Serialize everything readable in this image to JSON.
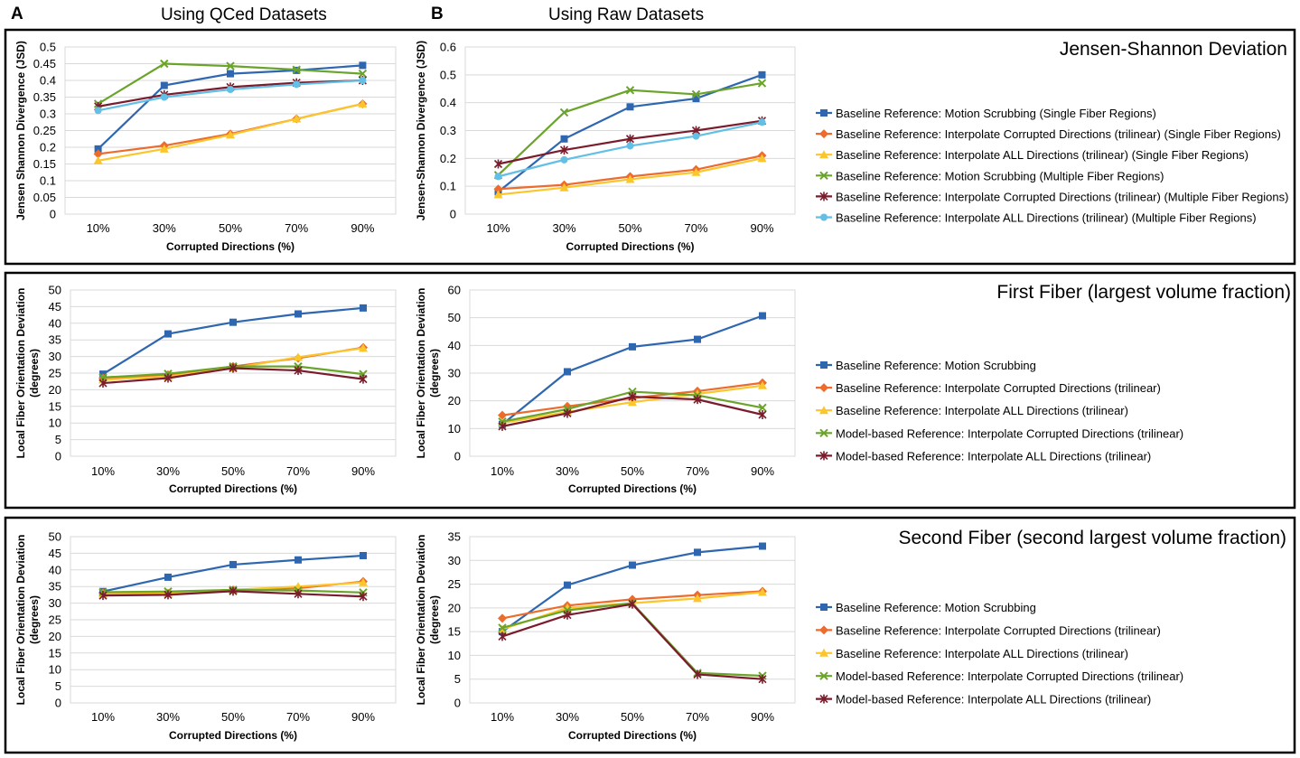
{
  "header": {
    "panel_a_letter": "A",
    "panel_a_title": "Using QCed Datasets",
    "panel_b_letter": "B",
    "panel_b_title": "Using Raw Datasets"
  },
  "colors": {
    "series": [
      "#2e67b0",
      "#ed6b2c",
      "#fbc52c",
      "#6aa42a",
      "#7b1c2c",
      "#62bfe6"
    ],
    "grid": "#d9d9d9",
    "frame": "#000000"
  },
  "chart_data": [
    {
      "type": "line",
      "row": "jsd",
      "panel": "A",
      "title": "Jensen-Shannon Deviation",
      "xlabel": "Corrupted Directions (%)",
      "ylabel": "Jensen Shannon Divergence (JSD)",
      "ylim": [
        0,
        0.5
      ],
      "ytick_step": 0.05,
      "ytick_labels": [
        "0",
        "0.05",
        "0.1",
        "0.15",
        "0.2",
        "0.25",
        "0.3",
        "0.35",
        "0.4",
        "0.45",
        "0.5"
      ],
      "categories": [
        "10%",
        "30%",
        "50%",
        "70%",
        "90%"
      ],
      "series": [
        {
          "name": "Baseline Reference: Motion Scrubbing (Single Fiber Regions)",
          "values": [
            0.195,
            0.385,
            0.42,
            0.43,
            0.445
          ]
        },
        {
          "name": "Baseline Reference: Interpolate Corrupted Directions (trilinear) (Single Fiber Regions)",
          "values": [
            0.18,
            0.205,
            0.24,
            0.285,
            0.33
          ]
        },
        {
          "name": "Baseline Reference: Interpolate ALL Directions (trilinear) (Single Fiber Regions)",
          "values": [
            0.16,
            0.195,
            0.237,
            0.285,
            0.33
          ]
        },
        {
          "name": "Baseline Reference: Motion Scrubbing (Multiple Fiber Regions)",
          "values": [
            0.33,
            0.45,
            0.443,
            0.432,
            0.42
          ]
        },
        {
          "name": "Baseline Reference: Interpolate Corrupted Directions (trilinear) (Multiple Fiber Regions)",
          "values": [
            0.322,
            0.357,
            0.38,
            0.393,
            0.4
          ]
        },
        {
          "name": "Baseline Reference: Interpolate ALL Directions (trilinear) (Multiple Fiber Regions)",
          "values": [
            0.31,
            0.35,
            0.373,
            0.388,
            0.4
          ]
        }
      ]
    },
    {
      "type": "line",
      "row": "jsd",
      "panel": "B",
      "xlabel": "Corrupted Directions (%)",
      "ylabel": "Jensen-Shannon Divergence (JSD)",
      "ylim": [
        0,
        0.6
      ],
      "ytick_step": 0.1,
      "ytick_labels": [
        "0",
        "0.1",
        "0.2",
        "0.3",
        "0.4",
        "0.5",
        "0.6"
      ],
      "categories": [
        "10%",
        "30%",
        "50%",
        "70%",
        "90%"
      ],
      "legend": [
        "Baseline Reference: Motion Scrubbing (Single Fiber Regions)",
        "Baseline Reference: Interpolate Corrupted Directions (trilinear) (Single Fiber Regions)",
        "Baseline Reference: Interpolate ALL Directions (trilinear) (Single Fiber Regions)",
        "Baseline Reference: Motion Scrubbing (Multiple Fiber Regions)",
        "Baseline Reference: Interpolate Corrupted Directions (trilinear) (Multiple Fiber Regions)",
        "Baseline Reference: Interpolate ALL Directions (trilinear) (Multiple Fiber Regions)"
      ],
      "series": [
        {
          "name": "Baseline Reference: Motion Scrubbing (Single Fiber Regions)",
          "values": [
            0.08,
            0.27,
            0.385,
            0.415,
            0.5
          ]
        },
        {
          "name": "Baseline Reference: Interpolate Corrupted Directions (trilinear) (Single Fiber Regions)",
          "values": [
            0.09,
            0.105,
            0.135,
            0.16,
            0.21
          ]
        },
        {
          "name": "Baseline Reference: Interpolate ALL Directions (trilinear) (Single Fiber Regions)",
          "values": [
            0.07,
            0.095,
            0.125,
            0.15,
            0.2
          ]
        },
        {
          "name": "Baseline Reference: Motion Scrubbing (Multiple Fiber Regions)",
          "values": [
            0.14,
            0.365,
            0.445,
            0.43,
            0.47
          ]
        },
        {
          "name": "Baseline Reference: Interpolate Corrupted Directions (trilinear) (Multiple Fiber Regions)",
          "values": [
            0.18,
            0.23,
            0.27,
            0.3,
            0.335
          ]
        },
        {
          "name": "Baseline Reference: Interpolate ALL Directions (trilinear) (Multiple Fiber Regions)",
          "values": [
            0.135,
            0.195,
            0.245,
            0.28,
            0.33
          ]
        }
      ]
    },
    {
      "type": "line",
      "row": "first",
      "panel": "A",
      "title": "First Fiber (largest volume fraction)",
      "xlabel": "Corrupted Directions (%)",
      "ylabel_lines": [
        "Local Fiber Orientation Deviation",
        "(degrees)"
      ],
      "ylim": [
        0,
        50
      ],
      "ytick_step": 5,
      "ytick_labels": [
        "0",
        "5",
        "10",
        "15",
        "20",
        "25",
        "30",
        "35",
        "40",
        "45",
        "50"
      ],
      "categories": [
        "10%",
        "30%",
        "50%",
        "70%",
        "90%"
      ],
      "series": [
        {
          "name": "Baseline Reference: Motion Scrubbing",
          "values": [
            24.7,
            36.8,
            40.3,
            42.8,
            44.6
          ]
        },
        {
          "name": "Baseline Reference: Interpolate Corrupted Directions (trilinear)",
          "values": [
            23.5,
            24.5,
            27.0,
            29.5,
            32.7
          ]
        },
        {
          "name": "Baseline Reference: Interpolate ALL Directions (trilinear)",
          "values": [
            23.0,
            24.0,
            26.5,
            29.8,
            32.5
          ]
        },
        {
          "name": "Model-based Reference: Interpolate Corrupted Directions (trilinear)",
          "values": [
            23.7,
            24.8,
            27.0,
            27.0,
            24.7
          ]
        },
        {
          "name": "Model-based Reference: Interpolate ALL Directions (trilinear)",
          "values": [
            22.0,
            23.5,
            26.5,
            25.8,
            23.2
          ]
        }
      ]
    },
    {
      "type": "line",
      "row": "first",
      "panel": "B",
      "xlabel": "Corrupted Directions (%)",
      "ylabel_lines": [
        "Local Fiber Orientation Deviation",
        "(degrees)"
      ],
      "ylim": [
        0,
        60
      ],
      "ytick_step": 10,
      "ytick_labels": [
        "0",
        "10",
        "20",
        "30",
        "40",
        "50",
        "60"
      ],
      "categories": [
        "10%",
        "30%",
        "50%",
        "70%",
        "90%"
      ],
      "legend": [
        "Baseline Reference: Motion Scrubbing",
        "Baseline Reference: Interpolate Corrupted Directions (trilinear)",
        "Baseline Reference: Interpolate ALL Directions (trilinear)",
        "Model-based Reference: Interpolate Corrupted Directions (trilinear)",
        "Model-based Reference: Interpolate ALL Directions (trilinear)"
      ],
      "series": [
        {
          "name": "Baseline Reference: Motion Scrubbing",
          "values": [
            11.5,
            30.5,
            39.5,
            42.2,
            50.7
          ]
        },
        {
          "name": "Baseline Reference: Interpolate Corrupted Directions (trilinear)",
          "values": [
            14.8,
            18.0,
            21.0,
            23.5,
            26.5
          ]
        },
        {
          "name": "Baseline Reference: Interpolate ALL Directions (trilinear)",
          "values": [
            12.0,
            16.0,
            19.5,
            22.5,
            25.5
          ]
        },
        {
          "name": "Model-based Reference: Interpolate Corrupted Directions (trilinear)",
          "values": [
            12.5,
            17.0,
            23.3,
            22.0,
            17.5
          ]
        },
        {
          "name": "Model-based Reference: Interpolate ALL Directions (trilinear)",
          "values": [
            10.8,
            15.5,
            21.5,
            20.5,
            15.0
          ]
        }
      ]
    },
    {
      "type": "line",
      "row": "second",
      "panel": "A",
      "title": "Second Fiber (second largest volume fraction)",
      "xlabel": "Corrupted Directions (%)",
      "ylabel_lines": [
        "Local Fiber Orientation Deviation",
        "(degrees)"
      ],
      "ylim": [
        0,
        50
      ],
      "ytick_step": 5,
      "ytick_labels": [
        "0",
        "5",
        "10",
        "15",
        "20",
        "25",
        "30",
        "35",
        "40",
        "45",
        "50"
      ],
      "categories": [
        "10%",
        "30%",
        "50%",
        "70%",
        "90%"
      ],
      "series": [
        {
          "name": "Baseline Reference: Motion Scrubbing",
          "values": [
            33.5,
            37.8,
            41.6,
            43.0,
            44.3
          ]
        },
        {
          "name": "Baseline Reference: Interpolate Corrupted Directions (trilinear)",
          "values": [
            33.0,
            33.0,
            34.0,
            34.5,
            36.5
          ]
        },
        {
          "name": "Baseline Reference: Interpolate ALL Directions (trilinear)",
          "values": [
            32.8,
            33.0,
            34.0,
            35.0,
            36.2
          ]
        },
        {
          "name": "Model-based Reference: Interpolate Corrupted Directions (trilinear)",
          "values": [
            33.3,
            33.5,
            34.0,
            33.8,
            33.2
          ]
        },
        {
          "name": "Model-based Reference: Interpolate ALL Directions (trilinear)",
          "values": [
            32.3,
            32.5,
            33.6,
            32.8,
            32.0
          ]
        }
      ]
    },
    {
      "type": "line",
      "row": "second",
      "panel": "B",
      "xlabel": "Corrupted Directions (%)",
      "ylabel_lines": [
        "Local Fiber Orientation Deviation",
        "(degrees)"
      ],
      "ylim": [
        0,
        35
      ],
      "ytick_step": 5,
      "ytick_labels": [
        "0",
        "5",
        "10",
        "15",
        "20",
        "25",
        "30",
        "35"
      ],
      "categories": [
        "10%",
        "30%",
        "50%",
        "70%",
        "90%"
      ],
      "legend": [
        "Baseline Reference: Motion Scrubbing",
        "Baseline Reference: Interpolate Corrupted Directions (trilinear)",
        "Baseline Reference: Interpolate ALL Directions (trilinear)",
        "Model-based Reference: Interpolate Corrupted Directions (trilinear)",
        "Model-based Reference: Interpolate ALL Directions (trilinear)"
      ],
      "series": [
        {
          "name": "Baseline Reference: Motion Scrubbing",
          "values": [
            15.0,
            24.8,
            29.0,
            31.7,
            33.0
          ]
        },
        {
          "name": "Baseline Reference: Interpolate Corrupted Directions (trilinear)",
          "values": [
            17.8,
            20.5,
            21.8,
            22.7,
            23.5
          ]
        },
        {
          "name": "Baseline Reference: Interpolate ALL Directions (trilinear)",
          "values": [
            15.5,
            20.0,
            21.0,
            22.0,
            23.3
          ]
        },
        {
          "name": "Model-based Reference: Interpolate Corrupted Directions (trilinear)",
          "values": [
            15.8,
            19.5,
            21.0,
            6.3,
            5.7
          ]
        },
        {
          "name": "Model-based Reference: Interpolate ALL Directions (trilinear)",
          "values": [
            14.0,
            18.5,
            20.8,
            6.0,
            5.0
          ]
        }
      ]
    }
  ]
}
